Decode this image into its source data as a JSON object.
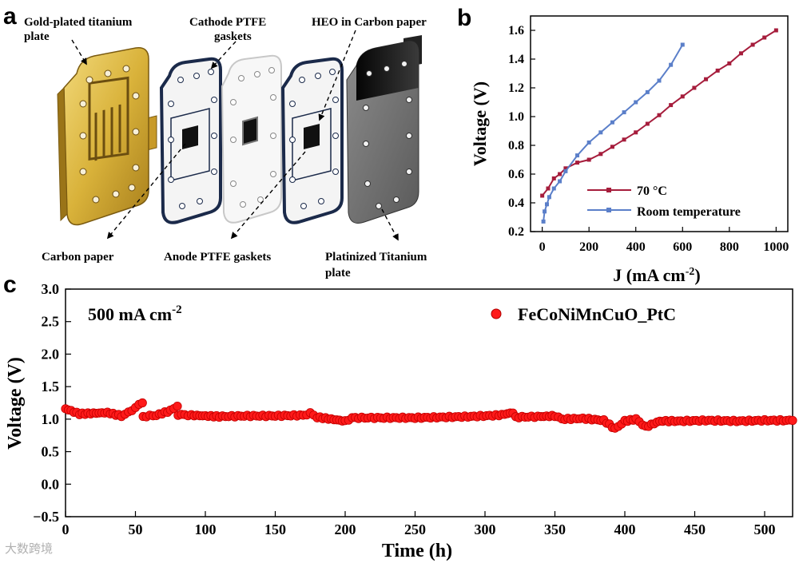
{
  "colors": {
    "gold": "#d9b23a",
    "dark_red": "#a61d3c",
    "blue": "#5b7fc9",
    "red_marker": "#ff1a1a",
    "gasket_outline": "#1b2a4a",
    "plate_dark": "#1a1a1a"
  },
  "panel_a": {
    "letter": "a",
    "labels": {
      "gold_plate_line1": "Gold-plated titanium",
      "gold_plate_line2": "plate",
      "cathode_line1": "Cathode PTFE",
      "cathode_line2": "gaskets",
      "heo": "HEO in Carbon paper",
      "carbon_paper": "Carbon paper",
      "anode": "Anode PTFE gaskets",
      "platinized_line1": "Platinized Titanium",
      "platinized_line2": "plate"
    }
  },
  "panel_b": {
    "letter": "b",
    "ylabel": "Voltage (V)",
    "xlabel_main": "J (mA cm",
    "xlabel_sup": "-2",
    "xlabel_end": ")",
    "xticks": [
      "0",
      "200",
      "400",
      "600",
      "800",
      "1000"
    ],
    "yticks": [
      "0.2",
      "0.4",
      "0.6",
      "0.8",
      "1.0",
      "1.2",
      "1.4",
      "1.6"
    ]
  },
  "panel_c": {
    "letter": "c",
    "ylabel": "Voltage (V)",
    "xlabel": "Time (h)",
    "annotation_main": "500 mA cm",
    "annotation_sup": "-2",
    "legend": "FeCoNiMnCuO_PtC",
    "xticks": [
      "0",
      "50",
      "100",
      "150",
      "200",
      "250",
      "300",
      "350",
      "400",
      "450",
      "500"
    ],
    "yticks": [
      "−0.5",
      "0.0",
      "0.5",
      "1.0",
      "1.5",
      "2.0",
      "2.5",
      "3.0"
    ]
  },
  "watermark": "大数跨境",
  "chart_data": [
    {
      "type": "line",
      "title": "",
      "xlabel": "J (mA cm-2)",
      "ylabel": "Voltage (V)",
      "xlim": [
        -50,
        1050
      ],
      "ylim": [
        0.2,
        1.7
      ],
      "legend_position": "bottom-right",
      "series": [
        {
          "name": "70 °C",
          "color": "#a61d3c",
          "x": [
            0,
            25,
            50,
            75,
            100,
            150,
            200,
            250,
            300,
            350,
            400,
            450,
            500,
            550,
            600,
            650,
            700,
            750,
            800,
            850,
            900,
            950,
            1000
          ],
          "y": [
            0.45,
            0.5,
            0.57,
            0.6,
            0.64,
            0.68,
            0.7,
            0.74,
            0.79,
            0.84,
            0.89,
            0.95,
            1.01,
            1.08,
            1.14,
            1.2,
            1.26,
            1.32,
            1.37,
            1.44,
            1.5,
            1.55,
            1.6
          ]
        },
        {
          "name": "Room temperature",
          "color": "#5b7fc9",
          "x": [
            5,
            10,
            20,
            30,
            50,
            75,
            100,
            150,
            200,
            250,
            300,
            350,
            400,
            450,
            500,
            550,
            600
          ],
          "y": [
            0.27,
            0.34,
            0.39,
            0.44,
            0.5,
            0.55,
            0.62,
            0.73,
            0.82,
            0.89,
            0.96,
            1.03,
            1.1,
            1.17,
            1.25,
            1.36,
            1.5
          ]
        }
      ]
    },
    {
      "type": "scatter",
      "title": "",
      "xlabel": "Time (h)",
      "ylabel": "Voltage (V)",
      "xlim": [
        0,
        520
      ],
      "ylim": [
        -0.5,
        3.0
      ],
      "legend_position": "top-right",
      "series": [
        {
          "name": "FeCoNiMnCuO_PtC",
          "color": "#ff1a1a",
          "points": [
            [
              0,
              1.16
            ],
            [
              10,
              1.08
            ],
            [
              20,
              1.09
            ],
            [
              30,
              1.1
            ],
            [
              40,
              1.05
            ],
            [
              45,
              1.1
            ],
            [
              50,
              1.18
            ],
            [
              55,
              1.25
            ],
            [
              55.5,
              1.04
            ],
            [
              65,
              1.06
            ],
            [
              75,
              1.13
            ],
            [
              80,
              1.2
            ],
            [
              80.5,
              1.07
            ],
            [
              90,
              1.06
            ],
            [
              100,
              1.05
            ],
            [
              110,
              1.04
            ],
            [
              130,
              1.05
            ],
            [
              150,
              1.05
            ],
            [
              170,
              1.06
            ],
            [
              175,
              1.09
            ],
            [
              180,
              1.03
            ],
            [
              190,
              1.0
            ],
            [
              200,
              0.97
            ],
            [
              205,
              1.02
            ],
            [
              230,
              1.02
            ],
            [
              250,
              1.02
            ],
            [
              270,
              1.03
            ],
            [
              290,
              1.04
            ],
            [
              310,
              1.06
            ],
            [
              320,
              1.1
            ],
            [
              322,
              1.03
            ],
            [
              340,
              1.04
            ],
            [
              350,
              1.05
            ],
            [
              355,
              1.0
            ],
            [
              370,
              1.01
            ],
            [
              385,
              0.98
            ],
            [
              393,
              0.85
            ],
            [
              400,
              0.97
            ],
            [
              408,
              1.0
            ],
            [
              415,
              0.88
            ],
            [
              425,
              0.97
            ],
            [
              440,
              0.97
            ],
            [
              460,
              0.98
            ],
            [
              480,
              0.97
            ],
            [
              500,
              0.98
            ],
            [
              520,
              0.98
            ]
          ]
        }
      ]
    }
  ]
}
